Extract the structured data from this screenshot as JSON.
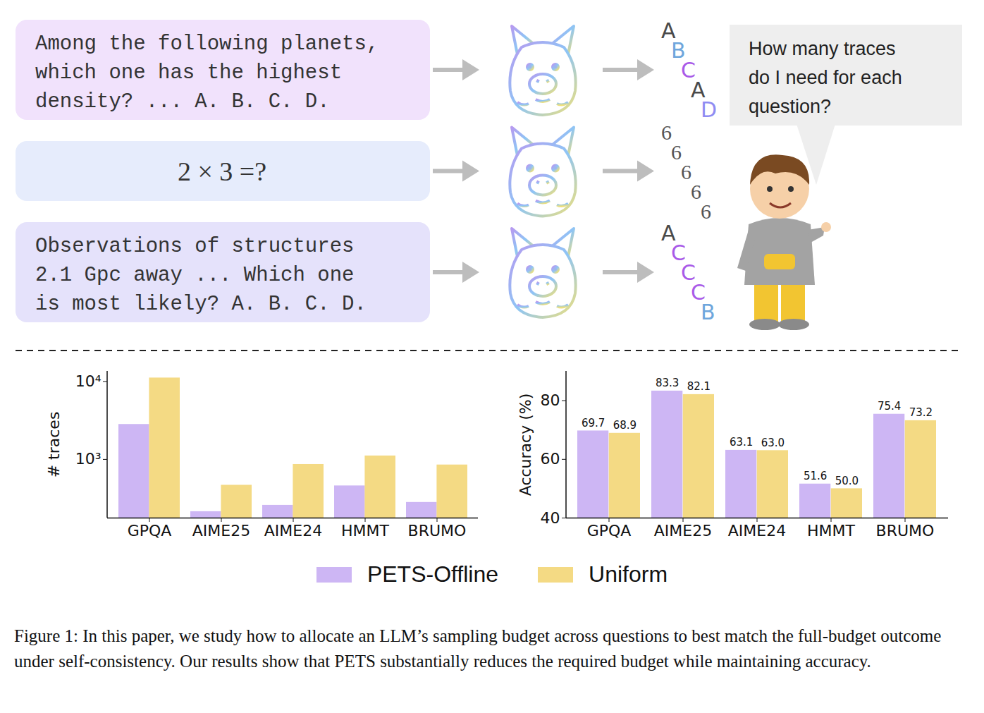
{
  "diagram": {
    "questions": [
      {
        "text": [
          "Among the following planets,",
          "which one has the highest",
          "density? ... A. B. C. D."
        ],
        "answers": [
          {
            "text": "A",
            "color": "#4a4a4a"
          },
          {
            "text": "B",
            "color": "#6ea6dc"
          },
          {
            "text": "C",
            "color": "#a95ae8"
          },
          {
            "text": "A",
            "color": "#4a4a4a"
          },
          {
            "text": "D",
            "color": "#8f8cf2"
          }
        ]
      },
      {
        "text": [
          "2 × 3 =?"
        ],
        "answers": [
          {
            "text": "6",
            "color": "#555555"
          },
          {
            "text": "6",
            "color": "#555555"
          },
          {
            "text": "6",
            "color": "#555555"
          },
          {
            "text": "6",
            "color": "#555555"
          },
          {
            "text": "6",
            "color": "#555555"
          }
        ]
      },
      {
        "text": [
          "Observations of structures",
          "2.1 Gpc away ... Which one",
          "is most likely? A. B. C. D."
        ],
        "answers": [
          {
            "text": "A",
            "color": "#4a4a4a"
          },
          {
            "text": "C",
            "color": "#a95ae8"
          },
          {
            "text": "C",
            "color": "#a95ae8"
          },
          {
            "text": "C",
            "color": "#a95ae8"
          },
          {
            "text": "B",
            "color": "#6ea6dc"
          }
        ]
      }
    ],
    "speech": [
      "How many traces",
      "do I need for each",
      "question?"
    ]
  },
  "chart_data": [
    {
      "type": "bar",
      "y_label": "# traces",
      "log": "y",
      "grid": false,
      "legend": "bottom",
      "categories": [
        "GPQA",
        "AIME25",
        "AIME24",
        "HMMT",
        "BRUMO"
      ],
      "series": [
        {
          "name": "PETS-Offline",
          "color": "#cdb6f4",
          "values": [
            2815,
            214,
            258,
            458,
            281
          ]
        },
        {
          "name": "Uniform",
          "color": "#f4da84",
          "values": [
            11100,
            467,
            863,
            1110,
            850
          ]
        }
      ],
      "ylim": [
        177,
        13500
      ],
      "yticks": [
        {
          "value": 1000,
          "label": "10³"
        },
        {
          "value": 10000,
          "label": "10⁴"
        }
      ]
    },
    {
      "type": "bar",
      "y_label": "Accuracy (%)",
      "grid": false,
      "data_labels": true,
      "categories": [
        "GPQA",
        "AIME25",
        "AIME24",
        "HMMT",
        "BRUMO"
      ],
      "series": [
        {
          "name": "PETS-Offline",
          "color": "#cdb6f4",
          "values": [
            69.7,
            83.3,
            63.1,
            51.6,
            75.4
          ]
        },
        {
          "name": "Uniform",
          "color": "#f4da84",
          "values": [
            68.9,
            82.1,
            63.0,
            50.0,
            73.2
          ],
          "value_labels": [
            "68.9",
            "82.1",
            "63.0",
            "50.0",
            "73.2"
          ]
        }
      ],
      "ylim": [
        40,
        90
      ],
      "yticks": [
        40,
        60,
        80
      ]
    }
  ],
  "caption": "Figure 1: In this paper, we study how to allocate an LLM’s sampling budget across questions to best match the full-budget outcome under self-consistency. Our results show that PETS substantially reduces the required budget while maintaining accuracy."
}
